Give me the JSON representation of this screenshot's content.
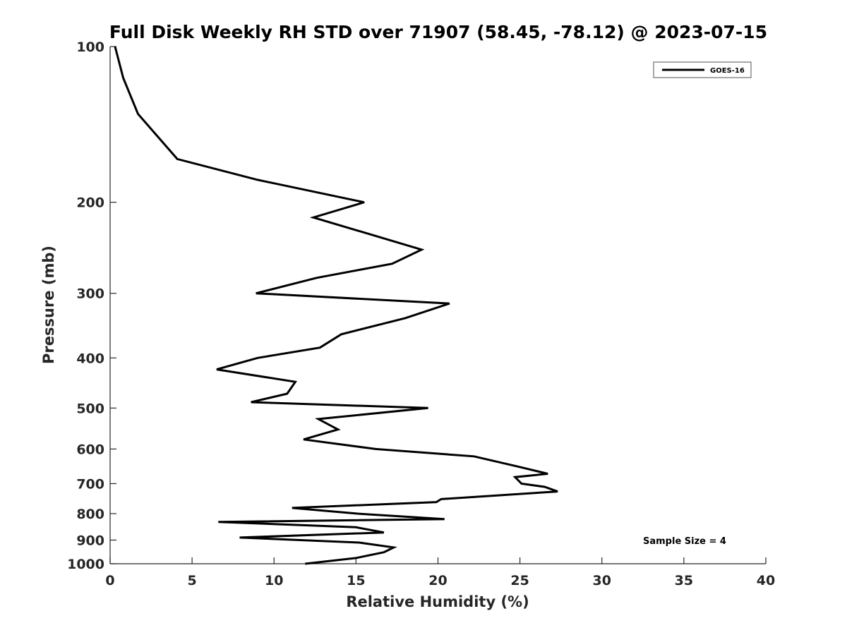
{
  "chart_data": {
    "type": "line",
    "title": "Full Disk Weekly RH STD over 71907 (58.45, -78.12) @ 2023-07-15",
    "xlabel": "Relative Humidity (%)",
    "ylabel": "Pressure (mb)",
    "xlim": [
      0,
      40
    ],
    "ylim": [
      100,
      1000
    ],
    "y_scale": "log",
    "y_reversed": true,
    "x_ticks": [
      0,
      5,
      10,
      15,
      20,
      25,
      30,
      35,
      40
    ],
    "y_ticks": [
      100,
      200,
      300,
      400,
      500,
      600,
      700,
      800,
      900,
      1000
    ],
    "grid": false,
    "legend_position": "top-right",
    "series": [
      {
        "name": "GOES-16",
        "color": "#000000",
        "x": [
          0.3,
          0.8,
          1.7,
          4.1,
          9.0,
          15.5,
          12.4,
          19.0,
          17.2,
          12.6,
          8.9,
          20.7,
          18.0,
          14.1,
          12.8,
          9.0,
          6.5,
          11.3,
          10.8,
          8.6,
          19.4,
          12.7,
          13.9,
          11.8,
          16.2,
          22.2,
          25.0,
          26.7,
          24.7,
          25.1,
          26.5,
          27.3,
          20.2,
          19.9,
          11.1,
          15.1,
          20.4,
          6.6,
          15.0,
          16.7,
          7.9,
          15.2,
          17.3,
          16.7,
          15.0,
          11.9
        ],
        "y": [
          100,
          115,
          135,
          165,
          181,
          200,
          214,
          247,
          263,
          280,
          300,
          314,
          335,
          360,
          382,
          400,
          421,
          445,
          469,
          487,
          500,
          525,
          550,
          575,
          600,
          620,
          650,
          670,
          680,
          700,
          710,
          725,
          750,
          760,
          780,
          800,
          820,
          830,
          850,
          870,
          890,
          910,
          930,
          950,
          975,
          1000
        ]
      }
    ],
    "annotations": [
      "Sample Size = 4"
    ]
  }
}
